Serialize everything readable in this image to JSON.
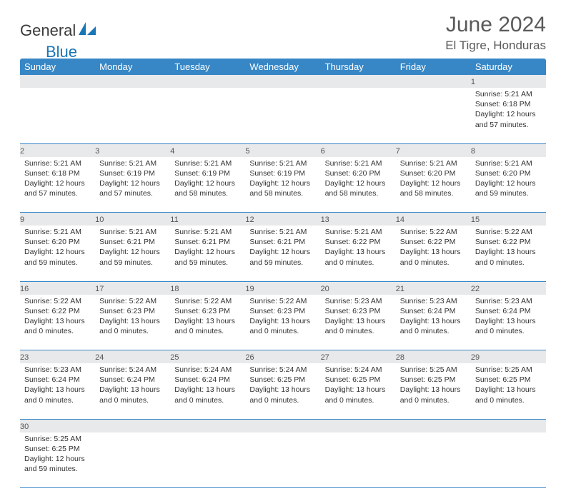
{
  "logo": {
    "general": "General",
    "blue": "Blue"
  },
  "title": "June 2024",
  "location": "El Tigre, Honduras",
  "colors": {
    "header_bg": "#3787c6",
    "header_fg": "#ffffff",
    "daynum_bg": "#e8e9ea",
    "border": "#3787c6",
    "logo_blue": "#1976b8",
    "text_gray": "#5a5a5a"
  },
  "weekdays": [
    "Sunday",
    "Monday",
    "Tuesday",
    "Wednesday",
    "Thursday",
    "Friday",
    "Saturday"
  ],
  "first_weekday_index": 6,
  "days": [
    {
      "n": 1,
      "sr": "5:21 AM",
      "ss": "6:18 PM",
      "dl": "12 hours and 57 minutes."
    },
    {
      "n": 2,
      "sr": "5:21 AM",
      "ss": "6:18 PM",
      "dl": "12 hours and 57 minutes."
    },
    {
      "n": 3,
      "sr": "5:21 AM",
      "ss": "6:19 PM",
      "dl": "12 hours and 57 minutes."
    },
    {
      "n": 4,
      "sr": "5:21 AM",
      "ss": "6:19 PM",
      "dl": "12 hours and 58 minutes."
    },
    {
      "n": 5,
      "sr": "5:21 AM",
      "ss": "6:19 PM",
      "dl": "12 hours and 58 minutes."
    },
    {
      "n": 6,
      "sr": "5:21 AM",
      "ss": "6:20 PM",
      "dl": "12 hours and 58 minutes."
    },
    {
      "n": 7,
      "sr": "5:21 AM",
      "ss": "6:20 PM",
      "dl": "12 hours and 58 minutes."
    },
    {
      "n": 8,
      "sr": "5:21 AM",
      "ss": "6:20 PM",
      "dl": "12 hours and 59 minutes."
    },
    {
      "n": 9,
      "sr": "5:21 AM",
      "ss": "6:20 PM",
      "dl": "12 hours and 59 minutes."
    },
    {
      "n": 10,
      "sr": "5:21 AM",
      "ss": "6:21 PM",
      "dl": "12 hours and 59 minutes."
    },
    {
      "n": 11,
      "sr": "5:21 AM",
      "ss": "6:21 PM",
      "dl": "12 hours and 59 minutes."
    },
    {
      "n": 12,
      "sr": "5:21 AM",
      "ss": "6:21 PM",
      "dl": "12 hours and 59 minutes."
    },
    {
      "n": 13,
      "sr": "5:21 AM",
      "ss": "6:22 PM",
      "dl": "13 hours and 0 minutes."
    },
    {
      "n": 14,
      "sr": "5:22 AM",
      "ss": "6:22 PM",
      "dl": "13 hours and 0 minutes."
    },
    {
      "n": 15,
      "sr": "5:22 AM",
      "ss": "6:22 PM",
      "dl": "13 hours and 0 minutes."
    },
    {
      "n": 16,
      "sr": "5:22 AM",
      "ss": "6:22 PM",
      "dl": "13 hours and 0 minutes."
    },
    {
      "n": 17,
      "sr": "5:22 AM",
      "ss": "6:23 PM",
      "dl": "13 hours and 0 minutes."
    },
    {
      "n": 18,
      "sr": "5:22 AM",
      "ss": "6:23 PM",
      "dl": "13 hours and 0 minutes."
    },
    {
      "n": 19,
      "sr": "5:22 AM",
      "ss": "6:23 PM",
      "dl": "13 hours and 0 minutes."
    },
    {
      "n": 20,
      "sr": "5:23 AM",
      "ss": "6:23 PM",
      "dl": "13 hours and 0 minutes."
    },
    {
      "n": 21,
      "sr": "5:23 AM",
      "ss": "6:24 PM",
      "dl": "13 hours and 0 minutes."
    },
    {
      "n": 22,
      "sr": "5:23 AM",
      "ss": "6:24 PM",
      "dl": "13 hours and 0 minutes."
    },
    {
      "n": 23,
      "sr": "5:23 AM",
      "ss": "6:24 PM",
      "dl": "13 hours and 0 minutes."
    },
    {
      "n": 24,
      "sr": "5:24 AM",
      "ss": "6:24 PM",
      "dl": "13 hours and 0 minutes."
    },
    {
      "n": 25,
      "sr": "5:24 AM",
      "ss": "6:24 PM",
      "dl": "13 hours and 0 minutes."
    },
    {
      "n": 26,
      "sr": "5:24 AM",
      "ss": "6:25 PM",
      "dl": "13 hours and 0 minutes."
    },
    {
      "n": 27,
      "sr": "5:24 AM",
      "ss": "6:25 PM",
      "dl": "13 hours and 0 minutes."
    },
    {
      "n": 28,
      "sr": "5:25 AM",
      "ss": "6:25 PM",
      "dl": "13 hours and 0 minutes."
    },
    {
      "n": 29,
      "sr": "5:25 AM",
      "ss": "6:25 PM",
      "dl": "13 hours and 0 minutes."
    },
    {
      "n": 30,
      "sr": "5:25 AM",
      "ss": "6:25 PM",
      "dl": "12 hours and 59 minutes."
    }
  ],
  "labels": {
    "sunrise": "Sunrise:",
    "sunset": "Sunset:",
    "daylight": "Daylight:"
  }
}
